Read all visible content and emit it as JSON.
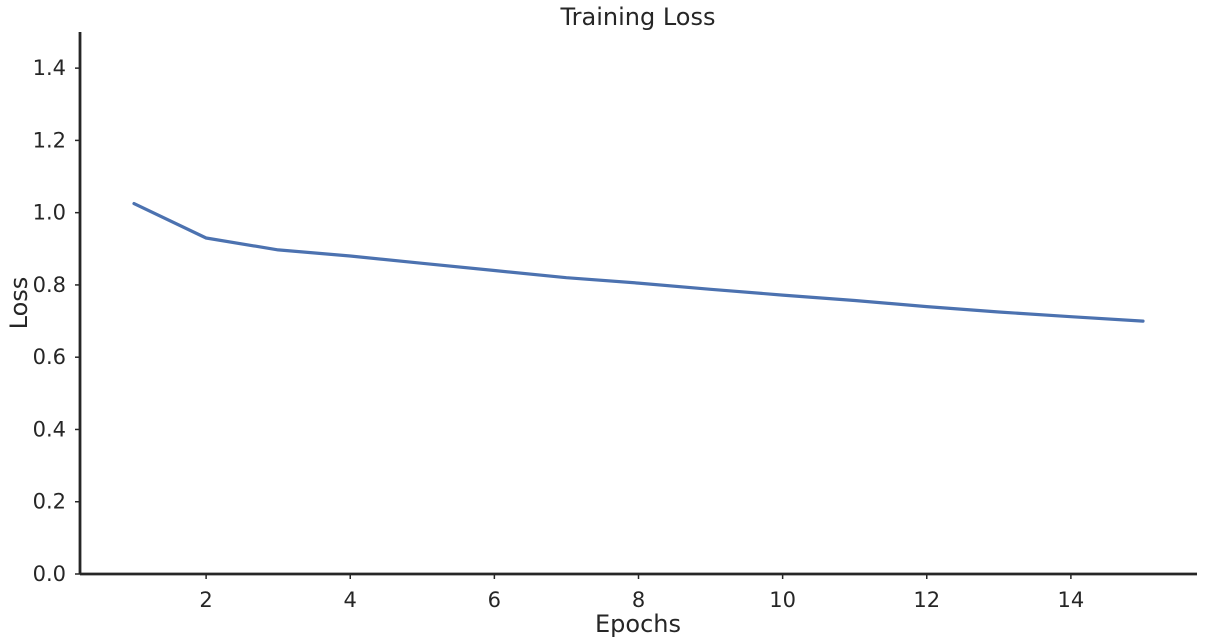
{
  "chart_data": {
    "type": "line",
    "title": "Training Loss",
    "xlabel": "Epochs",
    "ylabel": "Loss",
    "xlim": [
      0.25,
      15.75
    ],
    "ylim": [
      0.0,
      1.5
    ],
    "xticks": [
      2,
      4,
      6,
      8,
      10,
      12,
      14
    ],
    "xtick_labels": [
      "2",
      "4",
      "6",
      "8",
      "10",
      "12",
      "14"
    ],
    "yticks": [
      0.0,
      0.2,
      0.4,
      0.6,
      0.8,
      1.0,
      1.2,
      1.4
    ],
    "ytick_labels": [
      "0.0",
      "0.2",
      "0.4",
      "0.6",
      "0.8",
      "1.0",
      "1.2",
      "1.4"
    ],
    "grid": false,
    "series": [
      {
        "color": "#4c72b0",
        "x": [
          1,
          2,
          3,
          4,
          5,
          6,
          7,
          8,
          9,
          10,
          11,
          12,
          13,
          14,
          15
        ],
        "y": [
          1.025,
          0.93,
          0.897,
          0.88,
          0.86,
          0.84,
          0.82,
          0.805,
          0.788,
          0.772,
          0.757,
          0.74,
          0.725,
          0.712,
          0.7
        ]
      }
    ]
  }
}
